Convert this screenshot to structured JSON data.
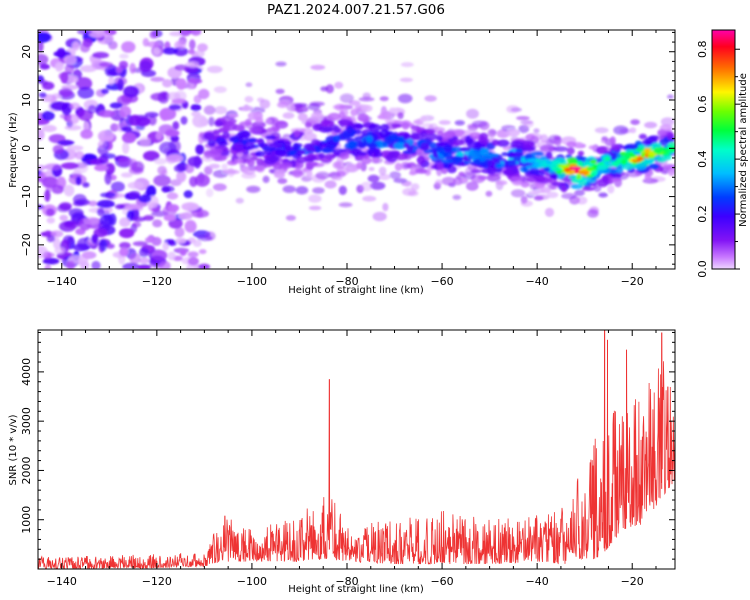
{
  "figure_title": "PAZ1.2024.007.21.57.G06",
  "chart_data": [
    {
      "type": "heatmap",
      "title": "PAZ1.2024.007.21.57.G06",
      "xlabel": "Height of straight line (km)",
      "ylabel": "Frequency (Hz)",
      "xlim": [
        -145,
        -11
      ],
      "ylim": [
        -25,
        24.5
      ],
      "xticks": [
        -140,
        -120,
        -100,
        -80,
        -60,
        -40,
        -20
      ],
      "yticks": [
        -20,
        -10,
        0,
        10,
        20
      ],
      "colorbar": {
        "label": "Normalized spectral amplitude",
        "range": [
          0.0,
          0.87
        ],
        "ticks": [
          0.0,
          0.2,
          0.4,
          0.6,
          0.8
        ],
        "colormap": "gist_rainbow_r"
      },
      "ridge": {
        "description_points": [
          {
            "x": -107,
            "y": 2
          },
          {
            "x": -100,
            "y": 1
          },
          {
            "x": -90,
            "y": 0
          },
          {
            "x": -80,
            "y": 2
          },
          {
            "x": -70,
            "y": 1
          },
          {
            "x": -60,
            "y": -1
          },
          {
            "x": -50,
            "y": -1.5
          },
          {
            "x": -40,
            "y": -3
          },
          {
            "x": -34,
            "y": -4.5
          },
          {
            "x": -30,
            "y": -5
          },
          {
            "x": -25,
            "y": -3
          },
          {
            "x": -20,
            "y": -2
          },
          {
            "x": -15,
            "y": -1
          },
          {
            "x": -11,
            "y": 0
          }
        ],
        "peak_amplitude": 0.87,
        "peak_x": -32
      },
      "noise_region_x": [
        -145,
        -110
      ]
    },
    {
      "type": "line",
      "xlabel": "Height of straight line (km)",
      "ylabel": "SNR (10 * v/v)",
      "xlim": [
        -145,
        -11
      ],
      "ylim": [
        0,
        4850
      ],
      "xticks": [
        -140,
        -120,
        -100,
        -80,
        -60,
        -40,
        -20
      ],
      "yticks": [
        1000,
        2000,
        3000,
        4000
      ],
      "color": "#ee3333",
      "series": [
        {
          "envelope_points": [
            {
              "x": -145,
              "low": 0,
              "high": 250
            },
            {
              "x": -120,
              "low": 20,
              "high": 300
            },
            {
              "x": -110,
              "low": 50,
              "high": 350
            },
            {
              "x": -106,
              "low": 150,
              "high": 1100
            },
            {
              "x": -100,
              "low": 150,
              "high": 800
            },
            {
              "x": -90,
              "low": 150,
              "high": 1100
            },
            {
              "x": -84,
              "low": 200,
              "high": 1600
            },
            {
              "x": -80,
              "low": 150,
              "high": 900
            },
            {
              "x": -70,
              "low": 100,
              "high": 1000
            },
            {
              "x": -60,
              "low": 100,
              "high": 1200
            },
            {
              "x": -50,
              "low": 100,
              "high": 1000
            },
            {
              "x": -40,
              "low": 150,
              "high": 1100
            },
            {
              "x": -34,
              "low": 100,
              "high": 1300
            },
            {
              "x": -32,
              "low": 200,
              "high": 1800
            },
            {
              "x": -28,
              "low": 200,
              "high": 2600
            },
            {
              "x": -26,
              "low": 300,
              "high": 4600
            },
            {
              "x": -22,
              "low": 800,
              "high": 3500
            },
            {
              "x": -18,
              "low": 900,
              "high": 3600
            },
            {
              "x": -14,
              "low": 1400,
              "high": 4700
            },
            {
              "x": -11,
              "low": 1800,
              "high": 3700
            }
          ],
          "spikes": [
            {
              "x": -83.7,
              "y": 3850
            },
            {
              "x": -105.7,
              "y": 1080
            },
            {
              "x": -25.8,
              "y": 4850
            },
            {
              "x": -25.2,
              "y": 4650
            },
            {
              "x": -21.2,
              "y": 4450
            },
            {
              "x": -13.8,
              "y": 4800
            },
            {
              "x": -12.5,
              "y": 3700
            }
          ]
        }
      ]
    }
  ]
}
